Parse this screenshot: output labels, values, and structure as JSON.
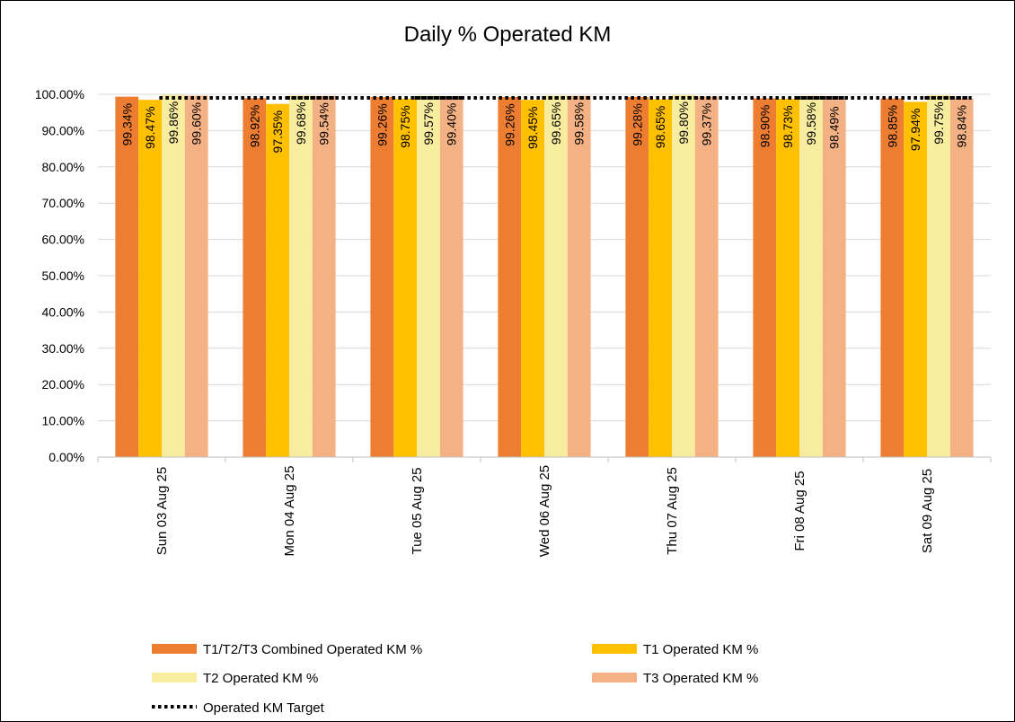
{
  "chart_data": {
    "type": "bar",
    "title": "Daily % Operated KM",
    "xlabel": "",
    "ylabel": "",
    "ylim": [
      0,
      100
    ],
    "ytick_step": 10,
    "ytick_labels": [
      "0.00%",
      "10.00%",
      "20.00%",
      "30.00%",
      "40.00%",
      "50.00%",
      "60.00%",
      "70.00%",
      "80.00%",
      "90.00%",
      "100.00%"
    ],
    "grid": true,
    "legend_position": "bottom",
    "categories": [
      "Sun 03 Aug 25",
      "Mon 04 Aug 25",
      "Tue 05 Aug 25",
      "Wed 06 Aug 25",
      "Thu 07 Aug 25",
      "Fri 08 Aug 25",
      "Sat 09 Aug 25"
    ],
    "series": [
      {
        "name": "T1/T2/T3 Combined Operated KM %",
        "color": "#ED7D31",
        "values": [
          99.34,
          98.92,
          99.26,
          99.26,
          99.28,
          98.9,
          98.85
        ],
        "labels": [
          "99.34%",
          "98.92%",
          "99.26%",
          "99.26%",
          "99.28%",
          "98.90%",
          "98.85%"
        ]
      },
      {
        "name": "T1 Operated KM %",
        "color": "#FFC000",
        "values": [
          98.47,
          97.35,
          98.75,
          98.45,
          98.65,
          98.73,
          97.94
        ],
        "labels": [
          "98.47%",
          "97.35%",
          "98.75%",
          "98.45%",
          "98.65%",
          "98.73%",
          "97.94%"
        ]
      },
      {
        "name": "T2 Operated KM %",
        "color": "#F8EC9E",
        "values": [
          99.86,
          99.68,
          99.57,
          99.65,
          99.8,
          99.58,
          99.75
        ],
        "labels": [
          "99.86%",
          "99.68%",
          "99.57%",
          "99.65%",
          "99.80%",
          "99.58%",
          "99.75%"
        ]
      },
      {
        "name": "T3 Operated KM %",
        "color": "#F4B183",
        "values": [
          99.6,
          99.54,
          99.4,
          99.58,
          99.37,
          98.49,
          98.84
        ],
        "labels": [
          "99.60%",
          "99.54%",
          "99.40%",
          "99.58%",
          "99.37%",
          "98.49%",
          "98.84%"
        ]
      }
    ],
    "target": {
      "name": "Operated KM Target",
      "value": 99.0,
      "style": "dotted",
      "color": "#000000"
    }
  }
}
